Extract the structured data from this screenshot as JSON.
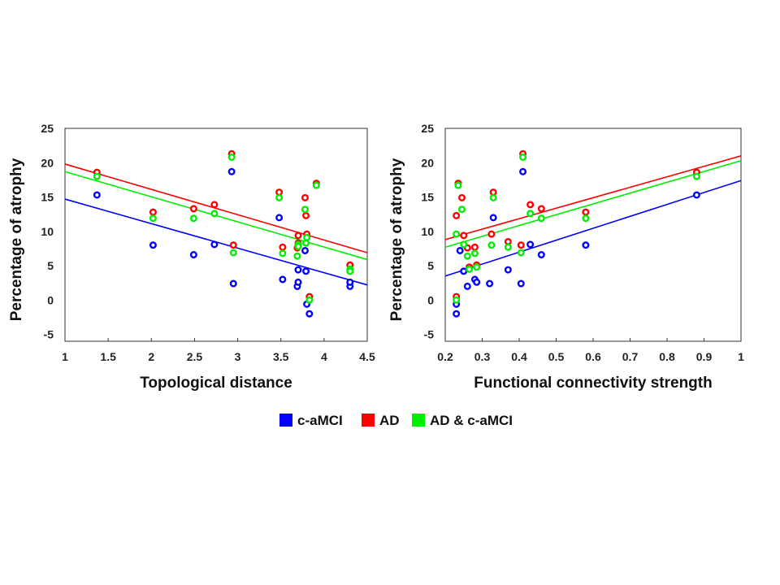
{
  "colors": {
    "c_amci": "#0000ff",
    "ad": "#ff0000",
    "combined": "#00ee00"
  },
  "legend": [
    {
      "key": "c_amci",
      "label": "c-aMCI"
    },
    {
      "key": "ad",
      "label": "AD"
    },
    {
      "key": "combined",
      "label": "AD & c-aMCI"
    }
  ],
  "chart_data": [
    {
      "type": "scatter",
      "xlabel": "Topological distance",
      "ylabel": "Percentage of atrophy",
      "xlim": [
        1,
        4.5
      ],
      "ylim": [
        -6,
        25
      ],
      "xticks": [
        1,
        1.5,
        2,
        2.5,
        3,
        3.5,
        4,
        4.5
      ],
      "yticks": [
        -5,
        0,
        5,
        10,
        15,
        20,
        25
      ],
      "xtick_labels": [
        "1",
        "1.5",
        "2",
        "2.5",
        "3",
        "3.5",
        "4",
        "4.5"
      ],
      "ytick_labels": [
        "-5",
        "0",
        "5",
        "10",
        "15",
        "20",
        "25"
      ],
      "series": [
        {
          "key": "c_amci",
          "name": "c-aMCI",
          "points": [
            [
              1.37,
              15.3
            ],
            [
              2.02,
              8.0
            ],
            [
              2.49,
              6.6
            ],
            [
              2.73,
              8.1
            ],
            [
              2.93,
              18.7
            ],
            [
              2.95,
              2.4
            ],
            [
              3.48,
              12.0
            ],
            [
              3.52,
              3.0
            ],
            [
              3.69,
              2.0
            ],
            [
              3.7,
              2.6
            ],
            [
              3.7,
              4.4
            ],
            [
              3.78,
              7.2
            ],
            [
              3.79,
              4.2
            ],
            [
              3.8,
              -0.6
            ],
            [
              3.83,
              -2.0
            ],
            [
              4.3,
              2.0
            ],
            [
              4.3,
              2.6
            ]
          ],
          "fit": [
            [
              1,
              14.7
            ],
            [
              4.5,
              2.2
            ]
          ]
        },
        {
          "key": "ad",
          "name": "AD",
          "points": [
            [
              1.37,
              18.6
            ],
            [
              2.02,
              12.8
            ],
            [
              2.49,
              13.3
            ],
            [
              2.73,
              13.9
            ],
            [
              2.93,
              21.3
            ],
            [
              2.95,
              8.0
            ],
            [
              3.48,
              15.7
            ],
            [
              3.52,
              7.7
            ],
            [
              3.69,
              7.6
            ],
            [
              3.7,
              9.4
            ],
            [
              3.7,
              8.3
            ],
            [
              3.78,
              14.9
            ],
            [
              3.79,
              12.3
            ],
            [
              3.8,
              9.6
            ],
            [
              3.83,
              0.5
            ],
            [
              3.91,
              17.0
            ],
            [
              4.3,
              5.1
            ]
          ],
          "fit": [
            [
              1,
              19.8
            ],
            [
              4.5,
              6.9
            ]
          ]
        },
        {
          "key": "combined",
          "name": "AD & c-aMCI",
          "points": [
            [
              1.37,
              18.0
            ],
            [
              2.02,
              11.9
            ],
            [
              2.49,
              11.9
            ],
            [
              2.73,
              12.6
            ],
            [
              2.93,
              20.8
            ],
            [
              2.95,
              6.9
            ],
            [
              3.48,
              14.9
            ],
            [
              3.52,
              6.8
            ],
            [
              3.69,
              6.4
            ],
            [
              3.7,
              8.1
            ],
            [
              3.7,
              7.8
            ],
            [
              3.78,
              13.2
            ],
            [
              3.79,
              8.3
            ],
            [
              3.8,
              9.1
            ],
            [
              3.83,
              0.0
            ],
            [
              3.91,
              16.7
            ],
            [
              4.3,
              4.5
            ],
            [
              4.3,
              4.2
            ]
          ],
          "fit": [
            [
              1,
              18.7
            ],
            [
              4.5,
              5.9
            ]
          ]
        }
      ]
    },
    {
      "type": "scatter",
      "xlabel": "Functional connectivity strength",
      "ylabel": "Percentage of atrophy",
      "xlim": [
        0.2,
        1
      ],
      "ylim": [
        -6,
        25
      ],
      "xticks": [
        0.2,
        0.3,
        0.4,
        0.5,
        0.6,
        0.7,
        0.8,
        0.9,
        1
      ],
      "yticks": [
        -5,
        0,
        5,
        10,
        15,
        20,
        25
      ],
      "xtick_labels": [
        "0.2",
        "0.3",
        "0.4",
        "0.5",
        "0.6",
        "0.7",
        "0.8",
        "0.9",
        "1"
      ],
      "ytick_labels": [
        "-5",
        "0",
        "5",
        "10",
        "15",
        "20",
        "25"
      ],
      "series": [
        {
          "key": "c_amci",
          "name": "c-aMCI",
          "points": [
            [
              0.23,
              -0.6
            ],
            [
              0.23,
              -2.0
            ],
            [
              0.24,
              7.2
            ],
            [
              0.25,
              4.2
            ],
            [
              0.26,
              2.0
            ],
            [
              0.28,
              3.0
            ],
            [
              0.285,
              2.6
            ],
            [
              0.32,
              2.4
            ],
            [
              0.33,
              12.0
            ],
            [
              0.37,
              4.4
            ],
            [
              0.405,
              2.4
            ],
            [
              0.41,
              18.7
            ],
            [
              0.43,
              8.1
            ],
            [
              0.46,
              6.6
            ],
            [
              0.58,
              8.0
            ],
            [
              0.88,
              15.3
            ]
          ],
          "fit": [
            [
              0.2,
              3.5
            ],
            [
              1,
              17.4
            ]
          ]
        },
        {
          "key": "ad",
          "name": "AD",
          "points": [
            [
              0.23,
              0.5
            ],
            [
              0.23,
              12.3
            ],
            [
              0.235,
              17.0
            ],
            [
              0.245,
              14.9
            ],
            [
              0.25,
              9.4
            ],
            [
              0.26,
              7.6
            ],
            [
              0.265,
              4.8
            ],
            [
              0.28,
              7.7
            ],
            [
              0.285,
              5.1
            ],
            [
              0.325,
              9.6
            ],
            [
              0.33,
              15.7
            ],
            [
              0.37,
              8.5
            ],
            [
              0.405,
              8.0
            ],
            [
              0.41,
              21.3
            ],
            [
              0.43,
              13.9
            ],
            [
              0.46,
              13.3
            ],
            [
              0.58,
              12.8
            ],
            [
              0.88,
              18.6
            ]
          ],
          "fit": [
            [
              0.2,
              8.8
            ],
            [
              1,
              21.0
            ]
          ]
        },
        {
          "key": "combined",
          "name": "AD & c-aMCI",
          "points": [
            [
              0.23,
              0.0
            ],
            [
              0.23,
              9.6
            ],
            [
              0.235,
              16.7
            ],
            [
              0.245,
              13.2
            ],
            [
              0.25,
              8.1
            ],
            [
              0.26,
              6.4
            ],
            [
              0.265,
              4.5
            ],
            [
              0.28,
              6.8
            ],
            [
              0.285,
              4.8
            ],
            [
              0.325,
              8.0
            ],
            [
              0.33,
              14.9
            ],
            [
              0.37,
              7.7
            ],
            [
              0.405,
              6.9
            ],
            [
              0.41,
              20.8
            ],
            [
              0.43,
              12.6
            ],
            [
              0.46,
              11.9
            ],
            [
              0.58,
              11.9
            ],
            [
              0.88,
              18.0
            ]
          ],
          "fit": [
            [
              0.2,
              7.7
            ],
            [
              1,
              20.3
            ]
          ]
        }
      ]
    }
  ]
}
